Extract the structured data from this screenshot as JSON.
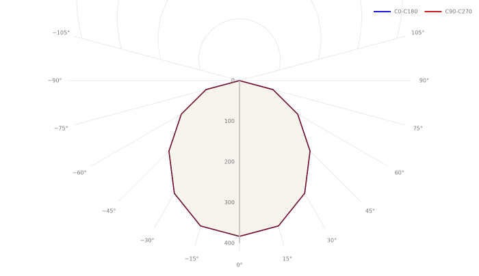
{
  "chart_data": {
    "type": "polar",
    "x": [
      -90,
      -75,
      -60,
      -45,
      -30,
      -15,
      0,
      15,
      30,
      45,
      60,
      75,
      90
    ],
    "series": [
      {
        "name": "C0-C180",
        "color": "#1a1adb",
        "values": [
          0,
          85,
          165,
          245,
          320,
          370,
          383,
          370,
          320,
          245,
          165,
          85,
          0
        ]
      },
      {
        "name": "C90-C270",
        "color": "#c41a1a",
        "values": [
          0,
          85,
          165,
          245,
          320,
          370,
          383,
          370,
          320,
          245,
          165,
          85,
          0
        ]
      }
    ],
    "line_color": "#7a1020",
    "fill_color": "#f7f4ee",
    "rlim": [
      0,
      420
    ],
    "rticks": [
      0,
      100,
      200,
      300,
      400
    ],
    "xticks": [
      {
        "value": -105,
        "label": "−105°"
      },
      {
        "value": -90,
        "label": "−90°"
      },
      {
        "value": -75,
        "label": "−75°"
      },
      {
        "value": -60,
        "label": "−60°"
      },
      {
        "value": -45,
        "label": "−45°"
      },
      {
        "value": -30,
        "label": "−30°"
      },
      {
        "value": -15,
        "label": "−15°"
      },
      {
        "value": 0,
        "label": "0°"
      },
      {
        "value": 15,
        "label": "15°"
      },
      {
        "value": 30,
        "label": "30°"
      },
      {
        "value": 45,
        "label": "45°"
      },
      {
        "value": 60,
        "label": "60°"
      },
      {
        "value": 75,
        "label": "75°"
      },
      {
        "value": 90,
        "label": "90°"
      },
      {
        "value": 105,
        "label": "105°"
      }
    ],
    "legend": "top-right"
  }
}
